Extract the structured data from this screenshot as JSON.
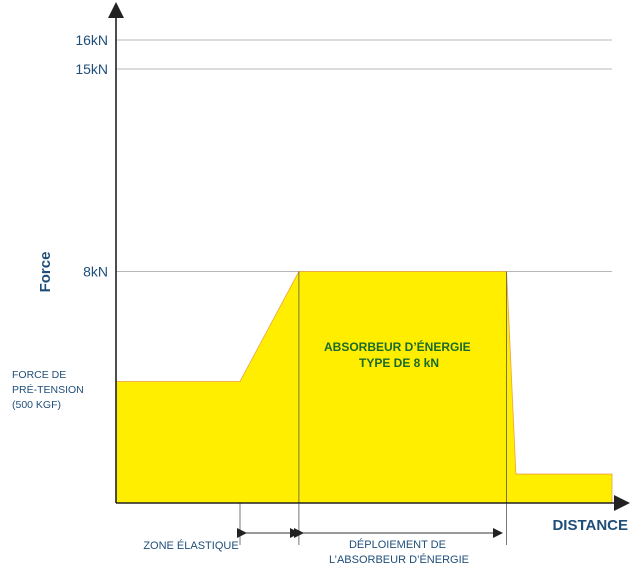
{
  "chart_data": {
    "type": "area",
    "xlabel": "DISTANCE",
    "ylabel": "Force",
    "ylim": [
      0,
      16
    ],
    "y_ticks": [
      {
        "value": 16,
        "label": "16kN"
      },
      {
        "value": 15,
        "label": "15kN"
      },
      {
        "value": 8,
        "label": "8kN"
      }
    ],
    "grid": true,
    "series": [
      {
        "points": [
          [
            0,
            4.2
          ],
          [
            2.0,
            4.2
          ],
          [
            2.95,
            8.0
          ],
          [
            6.3,
            8.0
          ],
          [
            6.45,
            1.0
          ],
          [
            8.0,
            1.0
          ]
        ],
        "color": "#ffee00"
      }
    ],
    "annotations": {
      "pretension": [
        "FORCE DE",
        "PRÉ-TENSION",
        "(500 KGF)"
      ],
      "absorber": [
        "ABSORBEUR D’ÉNERGIE",
        "TYPE  DE 8  kN"
      ],
      "elastic_zone": "ZONE ÉLASTIQUE",
      "deployment": [
        "DÉPLOIEMENT DE",
        "L’ABSORBEUR D’ÉNERGIE"
      ]
    }
  }
}
